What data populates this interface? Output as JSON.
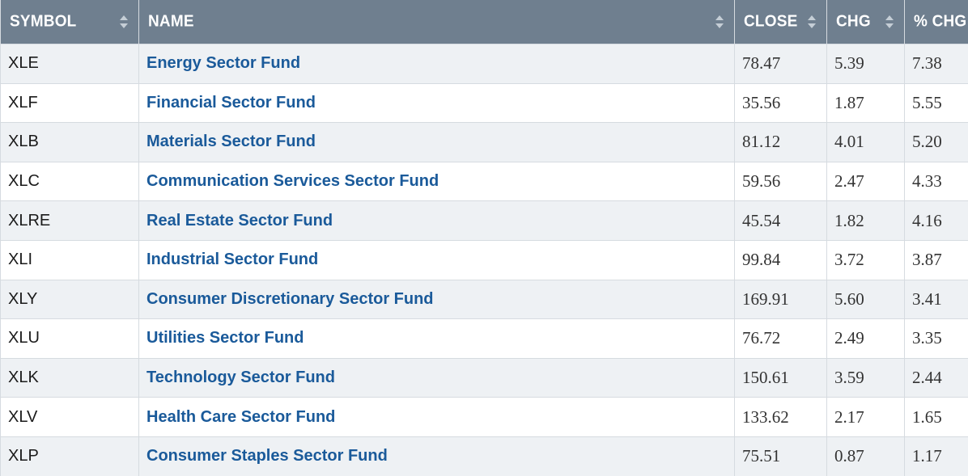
{
  "table": {
    "columns": [
      {
        "key": "symbol",
        "label": "SYMBOL"
      },
      {
        "key": "name",
        "label": "NAME"
      },
      {
        "key": "close",
        "label": "CLOSE"
      },
      {
        "key": "chg",
        "label": "CHG"
      },
      {
        "key": "pct_chg",
        "label": "% CHG"
      }
    ],
    "sort_icon": "sort-up-down-icon",
    "header_bg": "#6f7f8f",
    "link_color": "#1a5a9a",
    "rows": [
      {
        "symbol": "XLE",
        "name": "Energy Sector Fund",
        "close": "78.47",
        "chg": "5.39",
        "pct_chg": "7.38"
      },
      {
        "symbol": "XLF",
        "name": "Financial Sector Fund",
        "close": "35.56",
        "chg": "1.87",
        "pct_chg": "5.55"
      },
      {
        "symbol": "XLB",
        "name": "Materials Sector Fund",
        "close": "81.12",
        "chg": "4.01",
        "pct_chg": "5.20"
      },
      {
        "symbol": "XLC",
        "name": "Communication Services Sector Fund",
        "close": "59.56",
        "chg": "2.47",
        "pct_chg": "4.33"
      },
      {
        "symbol": "XLRE",
        "name": "Real Estate Sector Fund",
        "close": "45.54",
        "chg": "1.82",
        "pct_chg": "4.16"
      },
      {
        "symbol": "XLI",
        "name": "Industrial Sector Fund",
        "close": "99.84",
        "chg": "3.72",
        "pct_chg": "3.87"
      },
      {
        "symbol": "XLY",
        "name": "Consumer Discretionary Sector Fund",
        "close": "169.91",
        "chg": "5.60",
        "pct_chg": "3.41"
      },
      {
        "symbol": "XLU",
        "name": "Utilities Sector Fund",
        "close": "76.72",
        "chg": "2.49",
        "pct_chg": "3.35"
      },
      {
        "symbol": "XLK",
        "name": "Technology Sector Fund",
        "close": "150.61",
        "chg": "3.59",
        "pct_chg": "2.44"
      },
      {
        "symbol": "XLV",
        "name": "Health Care Sector Fund",
        "close": "133.62",
        "chg": "2.17",
        "pct_chg": "1.65"
      },
      {
        "symbol": "XLP",
        "name": "Consumer Staples Sector Fund",
        "close": "75.51",
        "chg": "0.87",
        "pct_chg": "1.17"
      }
    ]
  }
}
